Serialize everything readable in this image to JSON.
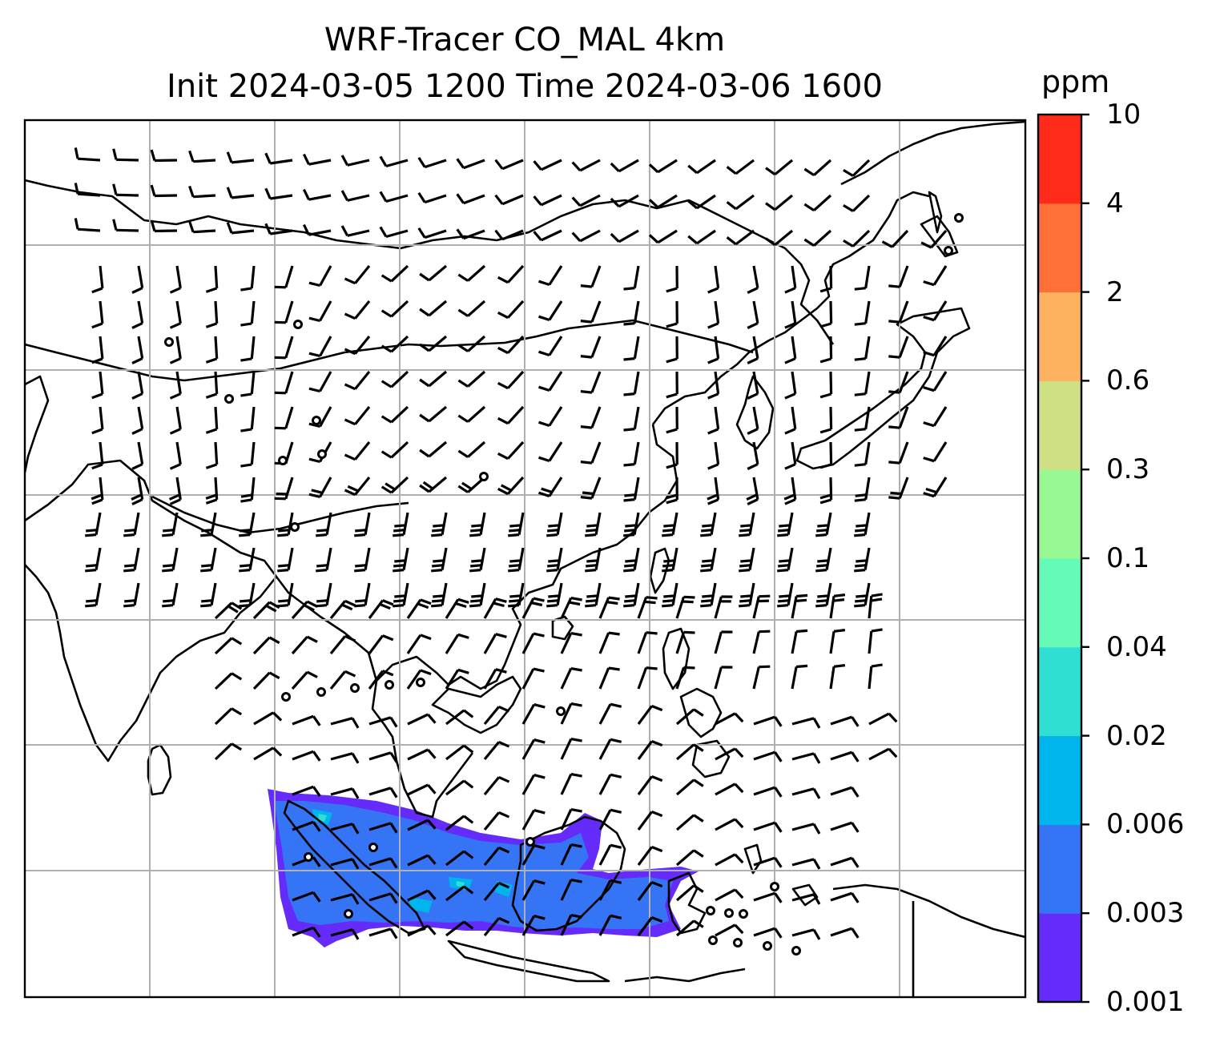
{
  "title": {
    "line1": "WRF-Tracer CO_MAL 4km",
    "line2": "Init 2024-03-05 1200 Time 2024-03-06 1600"
  },
  "colorbar": {
    "unit": "ppm",
    "levels": [
      "0.001",
      "0.003",
      "0.006",
      "0.02",
      "0.04",
      "0.1",
      "0.3",
      "0.6",
      "2",
      "4",
      "10"
    ],
    "colors": [
      "#652bfa",
      "#3574f4",
      "#00b4ec",
      "#2fdfd4",
      "#66fab9",
      "#98f894",
      "#cfe084",
      "#fdb25f",
      "#ff7038",
      "#ff2a1a"
    ]
  },
  "map": {
    "region": "South and East Asia / Maritime Continent",
    "projection": "lat-lon with gridlines",
    "gridlines": true,
    "overlay": "wind barbs",
    "shaded_field": "CO_MAL tracer concentration (ppm)",
    "plume_location": "Sumatra, Malay Peninsula and Borneo (south-west of domain)",
    "plume_colors_present": [
      "0.001-0.003",
      "0.003-0.006",
      "0.006-0.02",
      "0.02-0.04"
    ]
  }
}
